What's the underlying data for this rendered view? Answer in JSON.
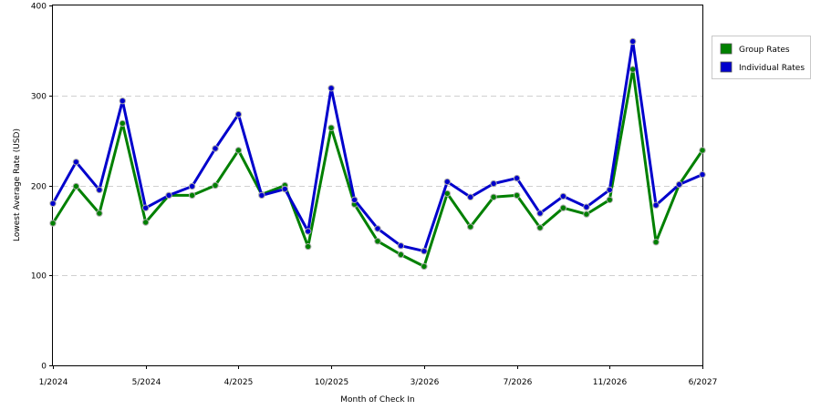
{
  "chart_data": {
    "type": "line",
    "xlabel": "Month of Check In",
    "ylabel": "Lowest Average Rate (USD)",
    "ylim": [
      0,
      400
    ],
    "yticks": [
      0,
      100,
      200,
      300,
      400
    ],
    "grid": "horizontal-dashed",
    "legend_position": "right",
    "x_tick_labels": [
      "1/2024",
      "5/2024",
      "4/2025",
      "10/2025",
      "3/2026",
      "7/2026",
      "11/2026",
      "6/2027"
    ],
    "x_tick_indices": [
      0,
      4,
      8,
      12,
      16,
      20,
      24,
      28
    ],
    "point_count": 29,
    "series": [
      {
        "name": "Group Rates",
        "color": "#008000",
        "values": [
          158,
          199,
          169,
          269,
          159,
          189,
          189,
          200,
          239,
          190,
          200,
          132,
          264,
          179,
          138,
          123,
          110,
          191,
          154,
          187,
          189,
          153,
          175,
          168,
          184,
          329,
          137,
          201,
          239
        ]
      },
      {
        "name": "Individual Rates",
        "color": "#0000cc",
        "values": [
          180,
          226,
          195,
          294,
          175,
          189,
          199,
          241,
          279,
          189,
          196,
          149,
          308,
          184,
          152,
          133,
          127,
          204,
          187,
          202,
          208,
          169,
          188,
          176,
          195,
          360,
          178,
          201,
          212
        ]
      }
    ]
  }
}
